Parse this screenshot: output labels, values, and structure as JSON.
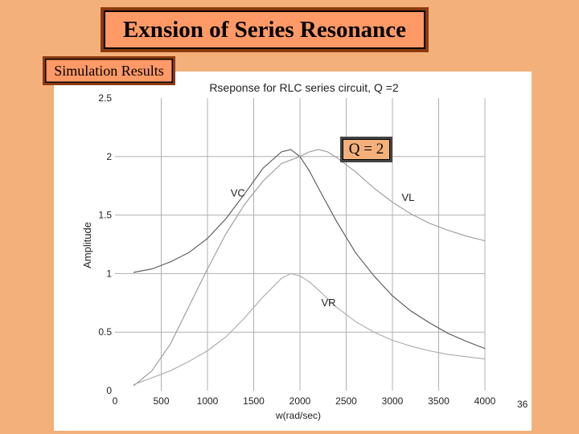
{
  "slide": {
    "title": "Exnsion of Series Resonance",
    "subtitle": "Simulation Results",
    "q_label": "Q = 2",
    "page_number": "36"
  },
  "colors": {
    "background": "#F4B07A",
    "title_fill": "#FF9966",
    "title_border": "#8B3A0E",
    "grid": "#b0b0b0"
  },
  "chart_data": {
    "type": "line",
    "title": "Rseponse for RLC series circuit, Q =2",
    "xlabel": "w(rad/sec)",
    "ylabel": "Amplitude",
    "xlim": [
      0,
      4000
    ],
    "ylim": [
      0,
      2.5
    ],
    "xticks": [
      "0",
      "500",
      "1000",
      "1500",
      "2000",
      "2500",
      "3000",
      "3500",
      "4000"
    ],
    "yticks": [
      "0",
      "0.5",
      "1",
      "1.5",
      "2",
      "2.5"
    ],
    "grid": true,
    "series": [
      {
        "name": "VC",
        "x": [
          200,
          400,
          600,
          800,
          1000,
          1200,
          1400,
          1600,
          1800,
          1900,
          2000,
          2100,
          2200,
          2400,
          2600,
          2800,
          3000,
          3200,
          3400,
          3600,
          3800,
          4000
        ],
        "y": [
          1.01,
          1.04,
          1.1,
          1.18,
          1.3,
          1.47,
          1.68,
          1.9,
          2.04,
          2.06,
          2.0,
          1.88,
          1.73,
          1.44,
          1.18,
          0.98,
          0.81,
          0.68,
          0.58,
          0.49,
          0.42,
          0.36
        ],
        "color": "#555555"
      },
      {
        "name": "VL",
        "x": [
          200,
          400,
          600,
          800,
          1000,
          1200,
          1400,
          1600,
          1800,
          2000,
          2100,
          2200,
          2300,
          2400,
          2600,
          2800,
          3000,
          3200,
          3400,
          3600,
          3800,
          4000
        ],
        "y": [
          0.04,
          0.17,
          0.4,
          0.72,
          1.04,
          1.34,
          1.59,
          1.79,
          1.94,
          2.0,
          2.04,
          2.06,
          2.04,
          1.99,
          1.87,
          1.73,
          1.61,
          1.51,
          1.43,
          1.37,
          1.32,
          1.28
        ],
        "color": "#999999"
      },
      {
        "name": "VR",
        "x": [
          200,
          400,
          600,
          800,
          1000,
          1200,
          1400,
          1600,
          1800,
          1900,
          2000,
          2100,
          2200,
          2400,
          2600,
          2800,
          3000,
          3200,
          3400,
          3600,
          3800,
          4000
        ],
        "y": [
          0.05,
          0.11,
          0.17,
          0.25,
          0.34,
          0.46,
          0.62,
          0.8,
          0.96,
          1.0,
          0.98,
          0.93,
          0.86,
          0.71,
          0.59,
          0.5,
          0.43,
          0.38,
          0.34,
          0.31,
          0.29,
          0.27
        ],
        "color": "#aaaaaa"
      }
    ],
    "annotations": [
      {
        "text": "VC",
        "x": 1250,
        "y": 1.66
      },
      {
        "text": "VL",
        "x": 3100,
        "y": 1.62
      },
      {
        "text": "VR",
        "x": 2230,
        "y": 0.72
      }
    ]
  }
}
